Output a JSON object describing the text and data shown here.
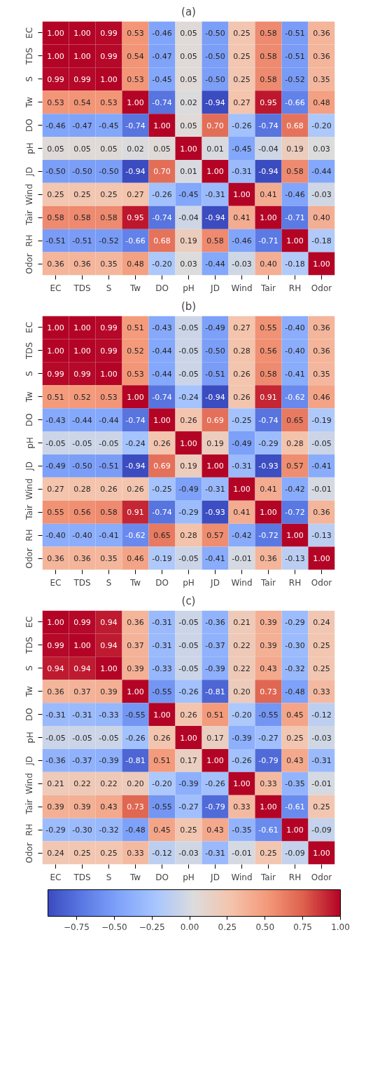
{
  "chart_data": [
    {
      "type": "heatmap",
      "title": "(a)",
      "data_labels": true,
      "categories": [
        "EC",
        "TDS",
        "S",
        "Tw",
        "DO",
        "pH",
        "JD",
        "Wind",
        "Tair",
        "RH",
        "Odor"
      ],
      "y_categories": [
        "EC",
        "TDS",
        "S",
        "Tw",
        "DO",
        "pH",
        "JD",
        "Wind",
        "Tair",
        "RH",
        "Odor"
      ],
      "cells": [
        [
          1.0,
          1.0,
          0.99,
          0.53,
          -0.46,
          0.05,
          -0.5,
          0.25,
          0.58,
          -0.51,
          0.36
        ],
        [
          1.0,
          1.0,
          0.99,
          0.54,
          -0.47,
          0.05,
          -0.5,
          0.25,
          0.58,
          -0.51,
          0.36
        ],
        [
          0.99,
          0.99,
          1.0,
          0.53,
          -0.45,
          0.05,
          -0.5,
          0.25,
          0.58,
          -0.52,
          0.35
        ],
        [
          0.53,
          0.54,
          0.53,
          1.0,
          -0.74,
          0.02,
          -0.94,
          0.27,
          0.95,
          -0.66,
          0.48
        ],
        [
          -0.46,
          -0.47,
          -0.45,
          -0.74,
          1.0,
          0.05,
          0.7,
          -0.26,
          -0.74,
          0.68,
          -0.2
        ],
        [
          0.05,
          0.05,
          0.05,
          0.02,
          0.05,
          1.0,
          0.01,
          -0.45,
          -0.04,
          0.19,
          0.03
        ],
        [
          -0.5,
          -0.5,
          -0.5,
          -0.94,
          0.7,
          0.01,
          1.0,
          -0.31,
          -0.94,
          0.58,
          -0.44
        ],
        [
          0.25,
          0.25,
          0.25,
          0.27,
          -0.26,
          -0.45,
          -0.31,
          1.0,
          0.41,
          -0.46,
          -0.03
        ],
        [
          0.58,
          0.58,
          0.58,
          0.95,
          -0.74,
          -0.04,
          -0.94,
          0.41,
          1.0,
          -0.71,
          0.4
        ],
        [
          -0.51,
          -0.51,
          -0.52,
          -0.66,
          0.68,
          0.19,
          0.58,
          -0.46,
          -0.71,
          1.0,
          -0.18
        ],
        [
          0.36,
          0.36,
          0.35,
          0.48,
          -0.2,
          0.03,
          -0.44,
          -0.03,
          0.4,
          -0.18,
          1.0
        ]
      ],
      "cell_labels": [
        [
          "1.00",
          "1.00",
          "0.99",
          "0.53",
          "-0.46",
          "0.05",
          "-0.50",
          "0.25",
          "0.58",
          "-0.51",
          "0.36"
        ],
        [
          "1.00",
          "1.00",
          "0.99",
          "0.54",
          "-0.47",
          "0.05",
          "-0.50",
          "0.25",
          "0.58",
          "-0.51",
          "0.36"
        ],
        [
          "0.99",
          "0.99",
          "1.00",
          "0.53",
          "-0.45",
          "0.05",
          "-0.50",
          "0.25",
          "0.58",
          "-0.52",
          "0.35"
        ],
        [
          "0.53",
          "0.54",
          "0.53",
          "1.00",
          "-0.74",
          "0.02",
          "-0.94",
          "0.27",
          "0.95",
          "-0.66",
          "0.48"
        ],
        [
          "-0.46",
          "-0.47",
          "-0.45",
          "-0.74",
          "1.00",
          "0.05",
          "0.70",
          "-0.26",
          "-0.74",
          "0.68",
          "-0.20"
        ],
        [
          "0.05",
          "0.05",
          "0.05",
          "0.02",
          "0.05",
          "1.00",
          "0.01",
          "-0.45",
          "-0.04",
          "0.19",
          "0.03"
        ],
        [
          "-0.50",
          "-0.50",
          "-0.50",
          "-0.94",
          "0.70",
          "0.01",
          "1.00",
          "-0.31",
          "-0.94",
          "0.58",
          "-0.44"
        ],
        [
          "0.25",
          "0.25",
          "0.25",
          "0.27",
          "-0.26",
          "-0.45",
          "-0.31",
          "1.00",
          "0.41",
          "-0.46",
          "-0.03"
        ],
        [
          "0.58",
          "0.58",
          "0.58",
          "0.95",
          "-0.74",
          "-0.04",
          "-0.94",
          "0.41",
          "1.00",
          "-0.71",
          "0.40"
        ],
        [
          "-0.51",
          "-0.51",
          "-0.52",
          "-0.66",
          "0.68",
          "0.19",
          "0.58",
          "-0.46",
          "-0.71",
          "1.00",
          "-0.18"
        ],
        [
          "0.36",
          "0.36",
          "0.35",
          "0.48",
          "-0.20",
          "0.03",
          "-0.44",
          "-0.03",
          "0.40",
          "-0.18",
          "1.00"
        ]
      ]
    },
    {
      "type": "heatmap",
      "title": "(b)",
      "data_labels": true,
      "categories": [
        "EC",
        "TDS",
        "S",
        "Tw",
        "DO",
        "pH",
        "JD",
        "Wind",
        "Tair",
        "RH",
        "Odor"
      ],
      "y_categories": [
        "EC",
        "TDS",
        "S",
        "Tw",
        "DO",
        "pH",
        "JD",
        "Wind",
        "Tair",
        "RH",
        "Odor"
      ],
      "cells": [
        [
          1.0,
          1.0,
          0.99,
          0.51,
          -0.43,
          -0.05,
          -0.49,
          0.27,
          0.55,
          -0.4,
          0.36
        ],
        [
          1.0,
          1.0,
          0.99,
          0.52,
          -0.44,
          -0.05,
          -0.5,
          0.28,
          0.56,
          -0.4,
          0.36
        ],
        [
          0.99,
          0.99,
          1.0,
          0.53,
          -0.44,
          -0.05,
          -0.51,
          0.26,
          0.58,
          -0.41,
          0.35
        ],
        [
          0.51,
          0.52,
          0.53,
          1.0,
          -0.74,
          -0.24,
          -0.94,
          0.26,
          0.91,
          -0.62,
          0.46
        ],
        [
          -0.43,
          -0.44,
          -0.44,
          -0.74,
          1.0,
          0.26,
          0.69,
          -0.25,
          -0.74,
          0.65,
          -0.19
        ],
        [
          -0.05,
          -0.05,
          -0.05,
          -0.24,
          0.26,
          1.0,
          0.19,
          -0.49,
          -0.29,
          0.28,
          -0.05
        ],
        [
          -0.49,
          -0.5,
          -0.51,
          -0.94,
          0.69,
          0.19,
          1.0,
          -0.31,
          -0.93,
          0.57,
          -0.41
        ],
        [
          0.27,
          0.28,
          0.26,
          0.26,
          -0.25,
          -0.49,
          -0.31,
          1.0,
          0.41,
          -0.42,
          -0.01
        ],
        [
          0.55,
          0.56,
          0.58,
          0.91,
          -0.74,
          -0.29,
          -0.93,
          0.41,
          1.0,
          -0.72,
          0.36
        ],
        [
          -0.4,
          -0.4,
          -0.41,
          -0.62,
          0.65,
          0.28,
          0.57,
          -0.42,
          -0.72,
          1.0,
          -0.13
        ],
        [
          0.36,
          0.36,
          0.35,
          0.46,
          -0.19,
          -0.05,
          -0.41,
          -0.01,
          0.36,
          -0.13,
          1.0
        ]
      ],
      "cell_labels": [
        [
          "1.00",
          "1.00",
          "0.99",
          "0.51",
          "-0.43",
          "-0.05",
          "-0.49",
          "0.27",
          "0.55",
          "-0.40",
          "0.36"
        ],
        [
          "1.00",
          "1.00",
          "0.99",
          "0.52",
          "-0.44",
          "-0.05",
          "-0.50",
          "0.28",
          "0.56",
          "-0.40",
          "0.36"
        ],
        [
          "0.99",
          "0.99",
          "1.00",
          "0.53",
          "-0.44",
          "-0.05",
          "-0.51",
          "0.26",
          "0.58",
          "-0.41",
          "0.35"
        ],
        [
          "0.51",
          "0.52",
          "0.53",
          "1.00",
          "-0.74",
          "-0.24",
          "-0.94",
          "0.26",
          "0.91",
          "-0.62",
          "0.46"
        ],
        [
          "-0.43",
          "-0.44",
          "-0.44",
          "-0.74",
          "1.00",
          "0.26",
          "0.69",
          "-0.25",
          "-0.74",
          "0.65",
          "-0.19"
        ],
        [
          "-0.05",
          "-0.05",
          "-0.05",
          "-0.24",
          "0.26",
          "1.00",
          "0.19",
          "-0.49",
          "-0.29",
          "0.28",
          "-0.05"
        ],
        [
          "-0.49",
          "-0.50",
          "-0.51",
          "-0.94",
          "0.69",
          "0.19",
          "1.00",
          "-0.31",
          "-0.93",
          "0.57",
          "-0.41"
        ],
        [
          "0.27",
          "0.28",
          "0.26",
          "0.26",
          "-0.25",
          "-0.49",
          "-0.31",
          "1.00",
          "0.41",
          "-0.42",
          "-0.01"
        ],
        [
          "0.55",
          "0.56",
          "0.58",
          "0.91",
          "-0.74",
          "-0.29",
          "-0.93",
          "0.41",
          "1.00",
          "-0.72",
          "0.36"
        ],
        [
          "-0.40",
          "-0.40",
          "-0.41",
          "-0.62",
          "0.65",
          "0.28",
          "0.57",
          "-0.42",
          "-0.72",
          "1.00",
          "-0.13"
        ],
        [
          "0.36",
          "0.36",
          "0.35",
          "0.46",
          "-0.19",
          "-0.05",
          "-0.41",
          "-0.01",
          "0.36",
          "-0.13",
          "1.00"
        ]
      ]
    },
    {
      "type": "heatmap",
      "title": "(c)",
      "data_labels": true,
      "clim": [
        -0.94,
        1.0
      ],
      "cticks": [
        {
          "value": -0.75,
          "label": "−0.75"
        },
        {
          "value": -0.5,
          "label": "−0.50"
        },
        {
          "value": -0.25,
          "label": "−0.25"
        },
        {
          "value": 0,
          "label": "0.00"
        },
        {
          "value": 0.25,
          "label": "0.25"
        },
        {
          "value": 0.5,
          "label": "0.50"
        },
        {
          "value": 0.75,
          "label": "0.75"
        },
        {
          "value": 1,
          "label": "1.00"
        }
      ],
      "categories": [
        "EC",
        "TDS",
        "S",
        "Tw",
        "DO",
        "pH",
        "JD",
        "Wind",
        "Tair",
        "RH",
        "Odor"
      ],
      "y_categories": [
        "EC",
        "TDS",
        "S",
        "Tw",
        "DO",
        "pH",
        "JD",
        "Wind",
        "Tair",
        "RH",
        "Odor"
      ],
      "cells": [
        [
          1.0,
          0.99,
          0.94,
          0.36,
          -0.31,
          -0.05,
          -0.36,
          0.21,
          0.39,
          -0.29,
          0.24
        ],
        [
          0.99,
          1.0,
          0.94,
          0.37,
          -0.31,
          -0.05,
          -0.37,
          0.22,
          0.39,
          -0.3,
          0.25
        ],
        [
          0.94,
          0.94,
          1.0,
          0.39,
          -0.33,
          -0.05,
          -0.39,
          0.22,
          0.43,
          -0.32,
          0.25
        ],
        [
          0.36,
          0.37,
          0.39,
          1.0,
          -0.55,
          -0.26,
          -0.81,
          0.2,
          0.73,
          -0.48,
          0.33
        ],
        [
          -0.31,
          -0.31,
          -0.33,
          -0.55,
          1.0,
          0.26,
          0.51,
          -0.2,
          -0.55,
          0.45,
          -0.12
        ],
        [
          -0.05,
          -0.05,
          -0.05,
          -0.26,
          0.26,
          1.0,
          0.17,
          -0.39,
          -0.27,
          0.25,
          -0.03
        ],
        [
          -0.36,
          -0.37,
          -0.39,
          -0.81,
          0.51,
          0.17,
          1.0,
          -0.26,
          -0.79,
          0.43,
          -0.31
        ],
        [
          0.21,
          0.22,
          0.22,
          0.2,
          -0.2,
          -0.39,
          -0.26,
          1.0,
          0.33,
          -0.35,
          -0.01
        ],
        [
          0.39,
          0.39,
          0.43,
          0.73,
          -0.55,
          -0.27,
          -0.79,
          0.33,
          1.0,
          -0.61,
          0.25
        ],
        [
          -0.29,
          -0.3,
          -0.32,
          -0.48,
          0.45,
          0.25,
          0.43,
          -0.35,
          -0.61,
          1.0,
          -0.09
        ],
        [
          0.24,
          0.25,
          0.25,
          0.33,
          -0.12,
          -0.03,
          -0.31,
          -0.01,
          0.25,
          -0.09,
          1.0
        ]
      ],
      "cell_labels": [
        [
          "1.00",
          "0.99",
          "0.94",
          "0.36",
          "-0.31",
          "-0.05",
          "-0.36",
          "0.21",
          "0.39",
          "-0.29",
          "0.24"
        ],
        [
          "0.99",
          "1.00",
          "0.94",
          "0.37",
          "-0.31",
          "-0.05",
          "-0.37",
          "0.22",
          "0.39",
          "-0.30",
          "0.25"
        ],
        [
          "0.94",
          "0.94",
          "1.00",
          "0.39",
          "-0.33",
          "-0.05",
          "-0.39",
          "0.22",
          "0.43",
          "-0.32",
          "0.25"
        ],
        [
          "0.36",
          "0.37",
          "0.39",
          "1.00",
          "-0.55",
          "-0.26",
          "-0.81",
          "0.20",
          "0.73",
          "-0.48",
          "0.33"
        ],
        [
          "-0.31",
          "-0.31",
          "-0.33",
          "-0.55",
          "1.00",
          "0.26",
          "0.51",
          "-0.20",
          "-0.55",
          "0.45",
          "-0.12"
        ],
        [
          "-0.05",
          "-0.05",
          "-0.05",
          "-0.26",
          "0.26",
          "1.00",
          "0.17",
          "-0.39",
          "-0.27",
          "0.25",
          "-0.03"
        ],
        [
          "-0.36",
          "-0.37",
          "-0.39",
          "-0.81",
          "0.51",
          "0.17",
          "1.00",
          "-0.26",
          "-0.79",
          "0.43",
          "-0.31"
        ],
        [
          "0.21",
          "0.22",
          "0.22",
          "0.20",
          "-0.20",
          "-0.39",
          "-0.26",
          "1.00",
          "0.33",
          "-0.35",
          "-0.01"
        ],
        [
          "0.39",
          "0.39",
          "0.43",
          "0.73",
          "-0.55",
          "-0.27",
          "-0.79",
          "0.33",
          "1.00",
          "-0.61",
          "0.25"
        ],
        [
          "-0.29",
          "-0.30",
          "-0.32",
          "-0.48",
          "0.45",
          "0.25",
          "0.43",
          "-0.35",
          "-0.61",
          "1.00",
          "-0.09"
        ],
        [
          "0.24",
          "0.25",
          "0.25",
          "0.33",
          "-0.12",
          "-0.03",
          "-0.31",
          "-0.01",
          "0.25",
          "-0.09",
          "1.00"
        ]
      ]
    }
  ]
}
